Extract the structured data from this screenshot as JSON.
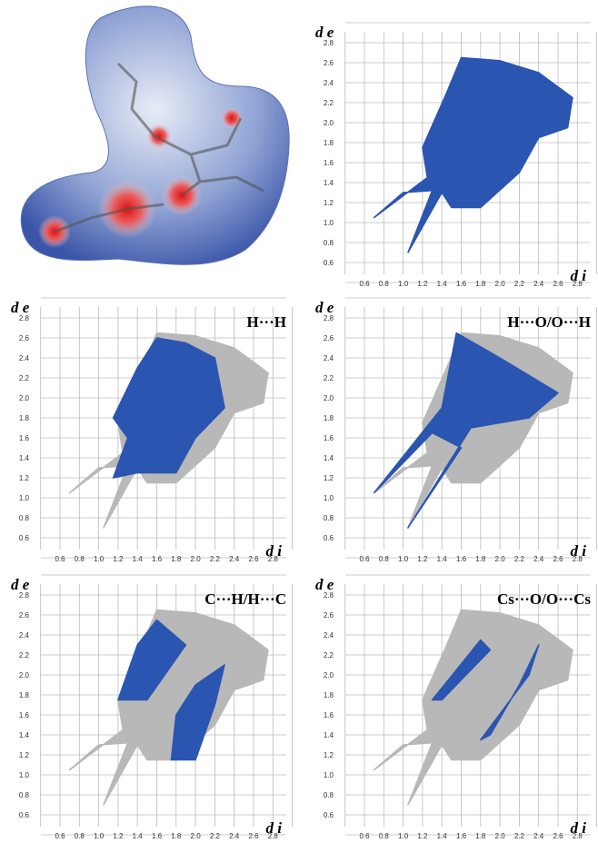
{
  "figure": {
    "plots": [
      {
        "y_axis_label": "d e",
        "x_axis_label": "d i",
        "yticks": [
          "2.8",
          "2.6",
          "2.4",
          "2.2",
          "2.0",
          "1.8",
          "1.6",
          "1.4",
          "1.2",
          "1.0",
          "0.8",
          "0.6"
        ],
        "xticks": [
          "0.6",
          "0.8",
          "1.0",
          "1.2",
          "1.4",
          "1.6",
          "1.8",
          "2.0",
          "2.2",
          "2.4",
          "2.6",
          "2.8"
        ]
      },
      {
        "y_axis_label": "d e",
        "x_axis_label": "d i",
        "label": "H···H",
        "yticks": [
          "2.8",
          "2.6",
          "2.4",
          "2.2",
          "2.0",
          "1.8",
          "1.6",
          "1.4",
          "1.2",
          "1.0",
          "0.8",
          "0.6"
        ],
        "xticks": [
          "0.6",
          "0.8",
          "1.0",
          "1.2",
          "1.4",
          "1.6",
          "1.8",
          "2.0",
          "2.2",
          "2.4",
          "2.6",
          "2.8"
        ]
      },
      {
        "y_axis_label": "d e",
        "x_axis_label": "d i",
        "label": "H···O/O···H",
        "yticks": [
          "2.8",
          "2.6",
          "2.4",
          "2.2",
          "2.0",
          "1.8",
          "1.6",
          "1.4",
          "1.2",
          "1.0",
          "0.8",
          "0.6"
        ],
        "xticks": [
          "0.6",
          "0.8",
          "1.0",
          "1.2",
          "1.4",
          "1.6",
          "1.8",
          "2.0",
          "2.2",
          "2.4",
          "2.6",
          "2.8"
        ]
      },
      {
        "y_axis_label": "d e",
        "x_axis_label": "d i",
        "label": "C···H/H···C",
        "yticks": [
          "2.8",
          "2.6",
          "2.4",
          "2.2",
          "2.0",
          "1.8",
          "1.6",
          "1.4",
          "1.2",
          "1.0",
          "0.8",
          "0.6"
        ],
        "xticks": [
          "0.6",
          "0.8",
          "1.0",
          "1.2",
          "1.4",
          "1.6",
          "1.8",
          "2.0",
          "2.2",
          "2.4",
          "2.6",
          "2.8"
        ]
      },
      {
        "y_axis_label": "d e",
        "x_axis_label": "d i",
        "label": "Cs···O/O···Cs",
        "yticks": [
          "2.8",
          "2.6",
          "2.4",
          "2.2",
          "2.0",
          "1.8",
          "1.6",
          "1.4",
          "1.2",
          "1.0",
          "0.8",
          "0.6"
        ],
        "xticks": [
          "0.6",
          "0.8",
          "1.0",
          "1.2",
          "1.4",
          "1.6",
          "1.8",
          "2.0",
          "2.2",
          "2.4",
          "2.6",
          "2.8"
        ]
      }
    ]
  }
}
